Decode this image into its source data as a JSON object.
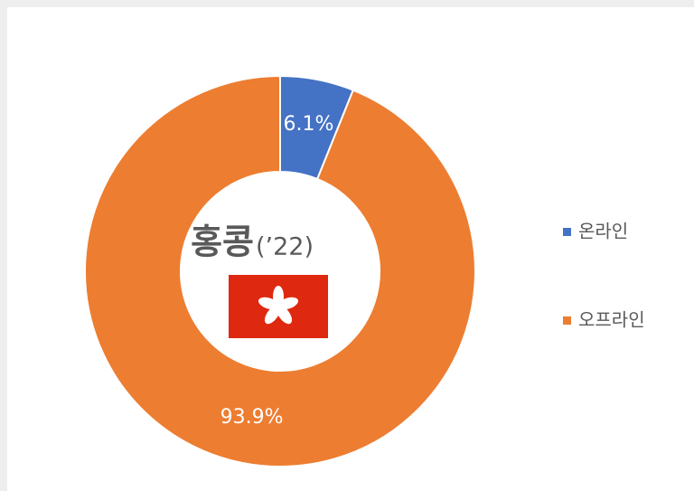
{
  "chart_data": {
    "type": "donut",
    "center_title": "홍콩",
    "center_subtitle": "(’22)",
    "categories": [
      "온라인",
      "오프라인"
    ],
    "values": [
      6.1,
      93.9
    ],
    "value_labels": [
      "6.1%",
      "93.9%"
    ],
    "colors": [
      "#4472c4",
      "#ed7d31"
    ],
    "legend": "right"
  }
}
